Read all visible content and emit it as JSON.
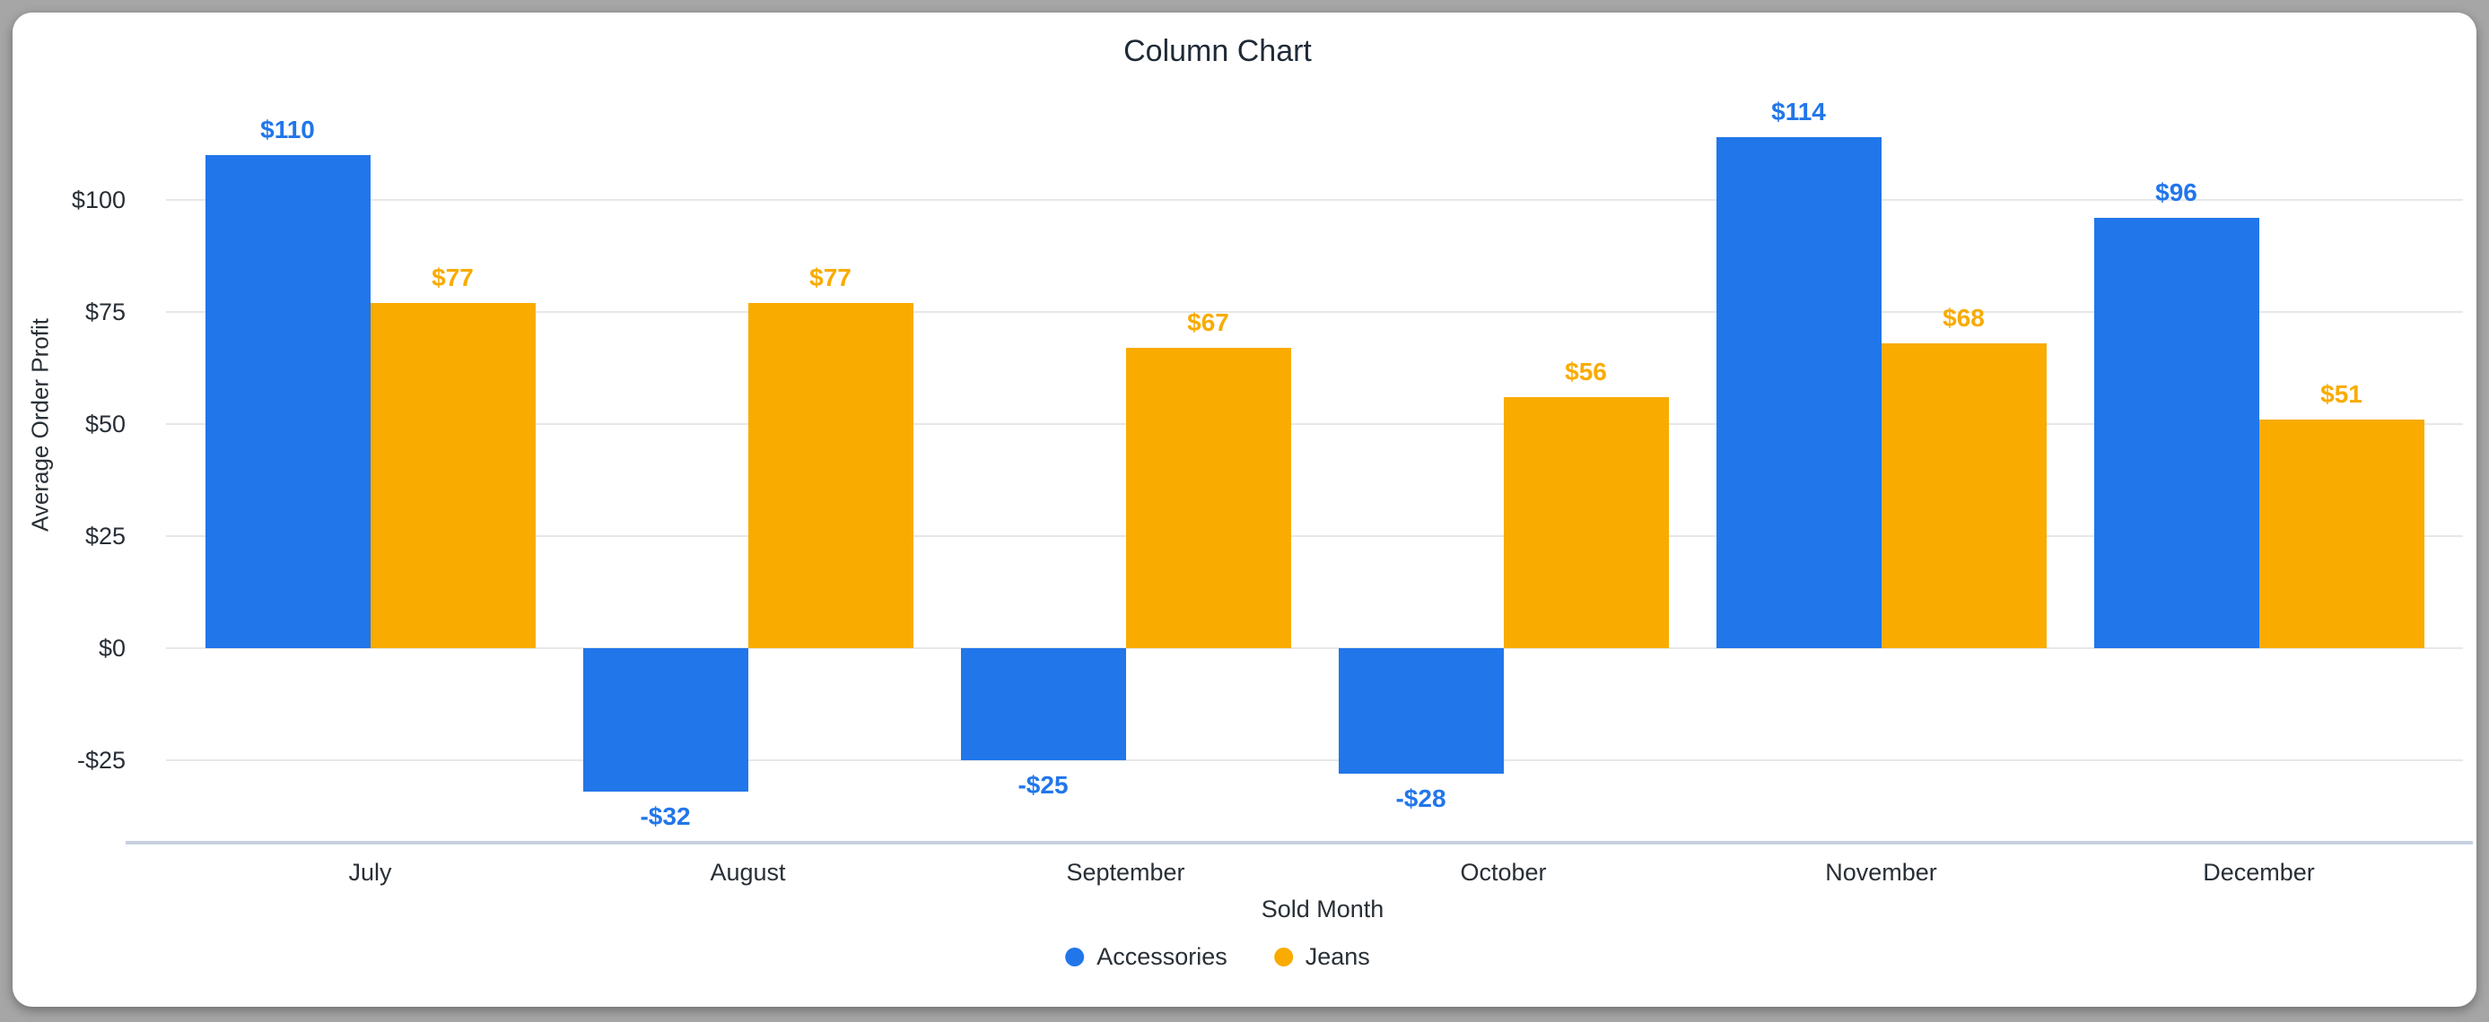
{
  "window": {
    "background_color": "#a6a6a6",
    "card_color": "#ffffff"
  },
  "header": {
    "title": "Column Chart"
  },
  "y_axis": {
    "title": "Average Order Profit"
  },
  "x_axis": {
    "title": "Sold Month"
  },
  "legend": {
    "items": [
      {
        "label": "Accessories",
        "color": "#2176ea"
      },
      {
        "label": "Jeans",
        "color": "#f9ab00"
      }
    ]
  },
  "colors": {
    "accessories_blue": "#2176ea",
    "jeans_orange": "#f9ab00",
    "gridline": "#e7e7e7",
    "axis_baseline": "#c8d1e0",
    "title_text": "#1f2a37",
    "axis_text": "#282f36"
  },
  "chart_data": {
    "type": "bar",
    "title": "Column Chart",
    "xlabel": "Sold Month",
    "ylabel": "Average Order Profit",
    "categories": [
      "July",
      "August",
      "September",
      "October",
      "November",
      "December"
    ],
    "series": [
      {
        "name": "Accessories",
        "color": "#2176ea",
        "values": [
          110,
          -32,
          -25,
          -28,
          114,
          96
        ],
        "labels": [
          "$110",
          "-$32",
          "-$25",
          "-$28",
          "$114",
          "$96"
        ]
      },
      {
        "name": "Jeans",
        "color": "#f9ab00",
        "values": [
          77,
          77,
          67,
          56,
          68,
          51
        ],
        "labels": [
          "$77",
          "$77",
          "$67",
          "$56",
          "$68",
          "$51"
        ]
      }
    ],
    "yticks": [
      100,
      75,
      50,
      25,
      0,
      -25
    ],
    "ytick_labels": [
      "$100",
      "$75",
      "$50",
      "$25",
      "$0",
      "-$25"
    ],
    "ylim": [
      -43.5,
      125
    ],
    "grid": true,
    "legend_position": "bottom"
  }
}
